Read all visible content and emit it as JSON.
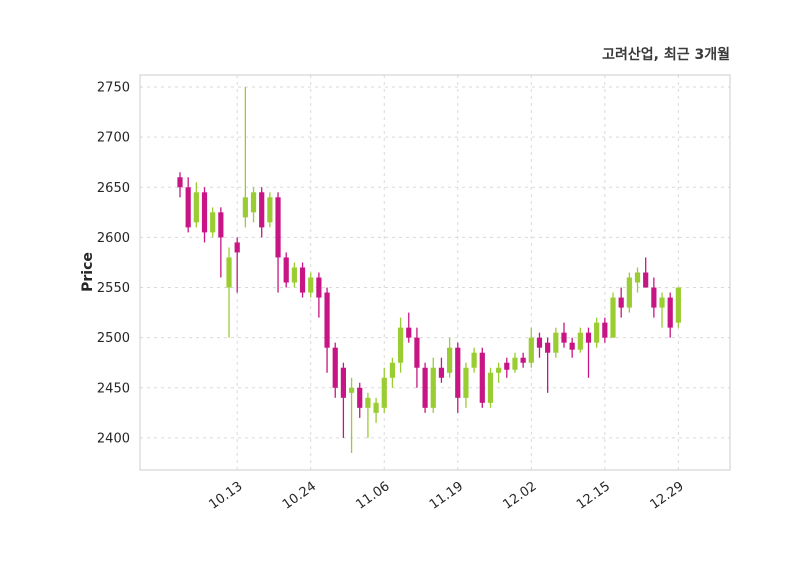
{
  "chart_data": {
    "type": "candlestick",
    "title": "고려산업, 최근 3개월",
    "ylabel": "Price",
    "xlabel": "",
    "grid": "dashed",
    "y_ticks": [
      2400,
      2450,
      2500,
      2550,
      2600,
      2650,
      2700,
      2750
    ],
    "ylim": [
      2368,
      2762
    ],
    "x_tick_labels": [
      "10.13",
      "10.24",
      "11.06",
      "11.19",
      "12.02",
      "12.15",
      "12.29"
    ],
    "x_tick_indices": [
      7,
      16,
      25,
      34,
      43,
      52,
      61
    ],
    "up_color": "#9ACD32",
    "down_color": "#C71585",
    "candles": [
      [
        2660,
        2665,
        2640,
        2650
      ],
      [
        2650,
        2660,
        2605,
        2610
      ],
      [
        2615,
        2655,
        2610,
        2645
      ],
      [
        2645,
        2650,
        2595,
        2605
      ],
      [
        2605,
        2630,
        2600,
        2625
      ],
      [
        2625,
        2630,
        2560,
        2600
      ],
      [
        2550,
        2590,
        2500,
        2580
      ],
      [
        2595,
        2600,
        2545,
        2585
      ],
      [
        2620,
        2750,
        2610,
        2640
      ],
      [
        2625,
        2650,
        2615,
        2645
      ],
      [
        2645,
        2650,
        2600,
        2610
      ],
      [
        2615,
        2645,
        2610,
        2640
      ],
      [
        2640,
        2645,
        2545,
        2580
      ],
      [
        2580,
        2585,
        2550,
        2555
      ],
      [
        2555,
        2575,
        2550,
        2570
      ],
      [
        2570,
        2575,
        2540,
        2545
      ],
      [
        2545,
        2565,
        2540,
        2560
      ],
      [
        2560,
        2565,
        2520,
        2540
      ],
      [
        2545,
        2550,
        2465,
        2490
      ],
      [
        2490,
        2495,
        2440,
        2450
      ],
      [
        2470,
        2475,
        2400,
        2440
      ],
      [
        2445,
        2460,
        2385,
        2450
      ],
      [
        2450,
        2455,
        2420,
        2430
      ],
      [
        2430,
        2445,
        2400,
        2440
      ],
      [
        2425,
        2440,
        2415,
        2435
      ],
      [
        2430,
        2470,
        2425,
        2460
      ],
      [
        2460,
        2480,
        2450,
        2475
      ],
      [
        2475,
        2520,
        2465,
        2510
      ],
      [
        2510,
        2525,
        2495,
        2500
      ],
      [
        2500,
        2510,
        2450,
        2470
      ],
      [
        2470,
        2475,
        2425,
        2430
      ],
      [
        2430,
        2480,
        2425,
        2470
      ],
      [
        2470,
        2480,
        2455,
        2460
      ],
      [
        2465,
        2500,
        2460,
        2490
      ],
      [
        2490,
        2495,
        2425,
        2440
      ],
      [
        2440,
        2475,
        2430,
        2470
      ],
      [
        2470,
        2490,
        2465,
        2485
      ],
      [
        2485,
        2490,
        2430,
        2435
      ],
      [
        2435,
        2470,
        2430,
        2465
      ],
      [
        2465,
        2475,
        2455,
        2470
      ],
      [
        2475,
        2480,
        2460,
        2468
      ],
      [
        2468,
        2485,
        2465,
        2480
      ],
      [
        2480,
        2485,
        2470,
        2475
      ],
      [
        2475,
        2510,
        2470,
        2500
      ],
      [
        2500,
        2505,
        2480,
        2490
      ],
      [
        2495,
        2500,
        2445,
        2485
      ],
      [
        2485,
        2510,
        2480,
        2505
      ],
      [
        2505,
        2515,
        2490,
        2495
      ],
      [
        2495,
        2500,
        2480,
        2488
      ],
      [
        2488,
        2510,
        2485,
        2505
      ],
      [
        2505,
        2510,
        2460,
        2495
      ],
      [
        2495,
        2520,
        2490,
        2515
      ],
      [
        2515,
        2520,
        2495,
        2500
      ],
      [
        2500,
        2545,
        2500,
        2540
      ],
      [
        2540,
        2550,
        2520,
        2530
      ],
      [
        2530,
        2565,
        2525,
        2560
      ],
      [
        2555,
        2570,
        2545,
        2565
      ],
      [
        2565,
        2580,
        2550,
        2550
      ],
      [
        2550,
        2560,
        2520,
        2530
      ],
      [
        2530,
        2545,
        2510,
        2540
      ],
      [
        2540,
        2545,
        2500,
        2510
      ],
      [
        2515,
        2550,
        2510,
        2550
      ]
    ]
  }
}
